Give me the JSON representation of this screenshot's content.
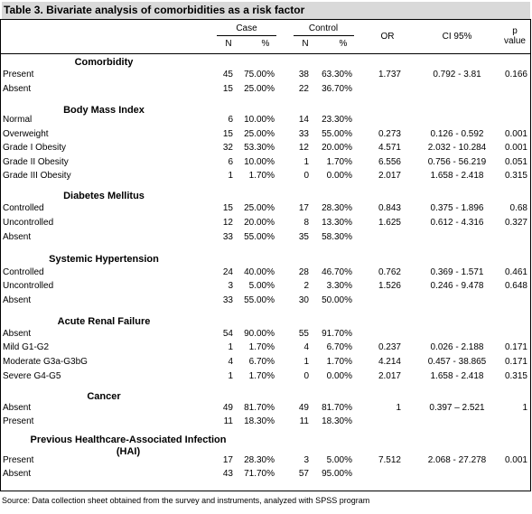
{
  "title": "Table 3. Bivariate analysis of comorbidities as a risk factor",
  "header": {
    "case": "Case",
    "control": "Control",
    "n1": "N",
    "pct1": "%",
    "n2": "N",
    "pct2": "%",
    "or": "OR",
    "ci": "CI 95%",
    "p": "p",
    "p2": "value"
  },
  "sections": [
    {
      "title": "Comorbidity",
      "rows": [
        {
          "label": "Present",
          "case_n": "45",
          "case_pct": "75.00%",
          "ctrl_n": "38",
          "ctrl_pct": "63.30%",
          "or": "1.737",
          "ci": "0.792 - 3.81",
          "p": "0.166"
        },
        {
          "label": "Absent",
          "case_n": "15",
          "case_pct": "25.00%",
          "ctrl_n": "22",
          "ctrl_pct": "36.70%",
          "or": "",
          "ci": "",
          "p": ""
        }
      ]
    },
    {
      "title": "Body Mass Index",
      "rows": [
        {
          "label": "Normal",
          "case_n": "6",
          "case_pct": "10.00%",
          "ctrl_n": "14",
          "ctrl_pct": "23.30%",
          "or": "",
          "ci": "",
          "p": ""
        },
        {
          "label": "Overweight",
          "case_n": "15",
          "case_pct": "25.00%",
          "ctrl_n": "33",
          "ctrl_pct": "55.00%",
          "or": "0.273",
          "ci": "0.126 - 0.592",
          "p": "0.001"
        },
        {
          "label": "Grade I Obesity",
          "case_n": "32",
          "case_pct": "53.30%",
          "ctrl_n": "12",
          "ctrl_pct": "20.00%",
          "or": "4.571",
          "ci": "2.032 - 10.284",
          "p": "0.001"
        },
        {
          "label": "Grade II Obesity",
          "case_n": "6",
          "case_pct": "10.00%",
          "ctrl_n": "1",
          "ctrl_pct": "1.70%",
          "or": "6.556",
          "ci": "0.756 - 56.219",
          "p": "0.051"
        },
        {
          "label": "Grade III Obesity",
          "case_n": "1",
          "case_pct": "1.70%",
          "ctrl_n": "0",
          "ctrl_pct": "0.00%",
          "or": "2.017",
          "ci": "1.658 - 2.418",
          "p": "0.315"
        }
      ]
    },
    {
      "title": "Diabetes Mellitus",
      "rows": [
        {
          "label": "Controlled",
          "case_n": "15",
          "case_pct": "25.00%",
          "ctrl_n": "17",
          "ctrl_pct": "28.30%",
          "or": "0.843",
          "ci": "0.375 - 1.896",
          "p": "0.68"
        },
        {
          "label": "Uncontrolled",
          "case_n": "12",
          "case_pct": "20.00%",
          "ctrl_n": "8",
          "ctrl_pct": "13.30%",
          "or": "1.625",
          "ci": "0.612 - 4.316",
          "p": "0.327"
        },
        {
          "label": "Absent",
          "case_n": "33",
          "case_pct": "55.00%",
          "ctrl_n": "35",
          "ctrl_pct": "58.30%",
          "or": "",
          "ci": "",
          "p": ""
        }
      ]
    },
    {
      "title": "Systemic Hypertension",
      "rows": [
        {
          "label": "Controlled",
          "case_n": "24",
          "case_pct": "40.00%",
          "ctrl_n": "28",
          "ctrl_pct": "46.70%",
          "or": "0.762",
          "ci": "0.369 - 1.571",
          "p": "0.461"
        },
        {
          "label": "Uncontrolled",
          "case_n": "3",
          "case_pct": "5.00%",
          "ctrl_n": "2",
          "ctrl_pct": "3.30%",
          "or": "1.526",
          "ci": "0.246 - 9.478",
          "p": "0.648"
        },
        {
          "label": "Absent",
          "case_n": "33",
          "case_pct": "55.00%",
          "ctrl_n": "30",
          "ctrl_pct": "50.00%",
          "or": "",
          "ci": "",
          "p": ""
        }
      ]
    },
    {
      "title": "Acute Renal Failure",
      "rows": [
        {
          "label": "Absent",
          "case_n": "54",
          "case_pct": "90.00%",
          "ctrl_n": "55",
          "ctrl_pct": "91.70%",
          "or": "",
          "ci": "",
          "p": ""
        },
        {
          "label": "Mild G1-G2",
          "case_n": "1",
          "case_pct": "1.70%",
          "ctrl_n": "4",
          "ctrl_pct": "6.70%",
          "or": "0.237",
          "ci": "0.026 - 2.188",
          "p": "0.171"
        },
        {
          "label": "Moderate G3a-G3bG",
          "case_n": "4",
          "case_pct": "6.70%",
          "ctrl_n": "1",
          "ctrl_pct": "1.70%",
          "or": "4.214",
          "ci": "0.457 - 38.865",
          "p": "0.171"
        },
        {
          "label": "Severe G4-G5",
          "case_n": "1",
          "case_pct": "1.70%",
          "ctrl_n": "0",
          "ctrl_pct": "0.00%",
          "or": "2.017",
          "ci": "1.658 - 2.418",
          "p": "0.315"
        }
      ]
    },
    {
      "title": "Cancer",
      "rows": [
        {
          "label": "Absent",
          "case_n": "49",
          "case_pct": "81.70%",
          "ctrl_n": "49",
          "ctrl_pct": "81.70%",
          "or": "1",
          "ci": "0.397 – 2.521",
          "p": "1"
        },
        {
          "label": "Present",
          "case_n": "11",
          "case_pct": "18.30%",
          "ctrl_n": "11",
          "ctrl_pct": "18.30%",
          "or": "",
          "ci": "",
          "p": ""
        }
      ]
    },
    {
      "title": "Previous Healthcare-Associated Infection",
      "title2": "(HAI)",
      "rows": [
        {
          "label": "Present",
          "case_n": "17",
          "case_pct": "28.30%",
          "ctrl_n": "3",
          "ctrl_pct": "5.00%",
          "or": "7.512",
          "ci": "2.068 - 27.278",
          "p": "0.001"
        },
        {
          "label": "Absent",
          "case_n": "43",
          "case_pct": "71.70%",
          "ctrl_n": "57",
          "ctrl_pct": "95.00%",
          "or": "",
          "ci": "",
          "p": ""
        }
      ]
    }
  ],
  "source": "Source: Data collection sheet obtained from the survey and instruments, analyzed with SPSS program"
}
